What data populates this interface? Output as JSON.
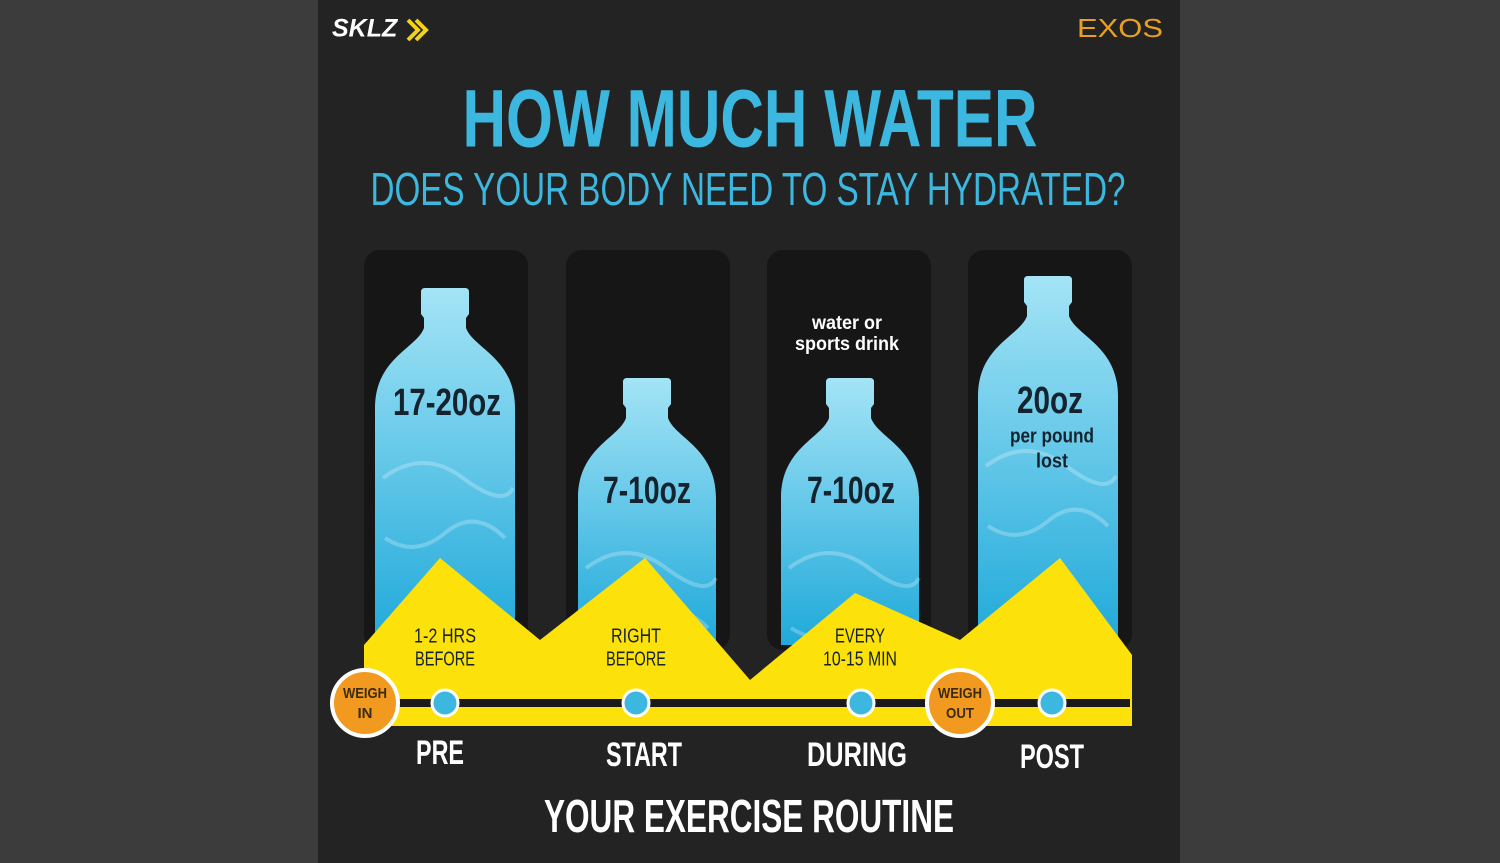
{
  "logos": {
    "left": "SKLZ",
    "right": "EXOS"
  },
  "header": {
    "title": "HOW MUCH WATER",
    "subtitle": "DOES YOUR BODY NEED TO STAY HYDRATED?"
  },
  "columns": [
    {
      "amount": "17-20oz",
      "timing": [
        "1-2 HRS",
        "BEFORE"
      ],
      "phase": "PRE"
    },
    {
      "amount": "7-10oz",
      "timing": [
        "RIGHT",
        "BEFORE"
      ],
      "phase": "START"
    },
    {
      "note": [
        "water or",
        "sports drink"
      ],
      "amount": "7-10oz",
      "timing": [
        "EVERY",
        "10-15 MIN"
      ],
      "phase": "DURING"
    },
    {
      "amount": "20oz",
      "detail": [
        "per pound",
        "lost"
      ],
      "phase": "POST"
    }
  ],
  "markers": [
    [
      "WEIGH",
      "IN"
    ],
    [
      "WEIGH",
      "OUT"
    ]
  ],
  "footer": "YOUR EXERCISE ROUTINE"
}
